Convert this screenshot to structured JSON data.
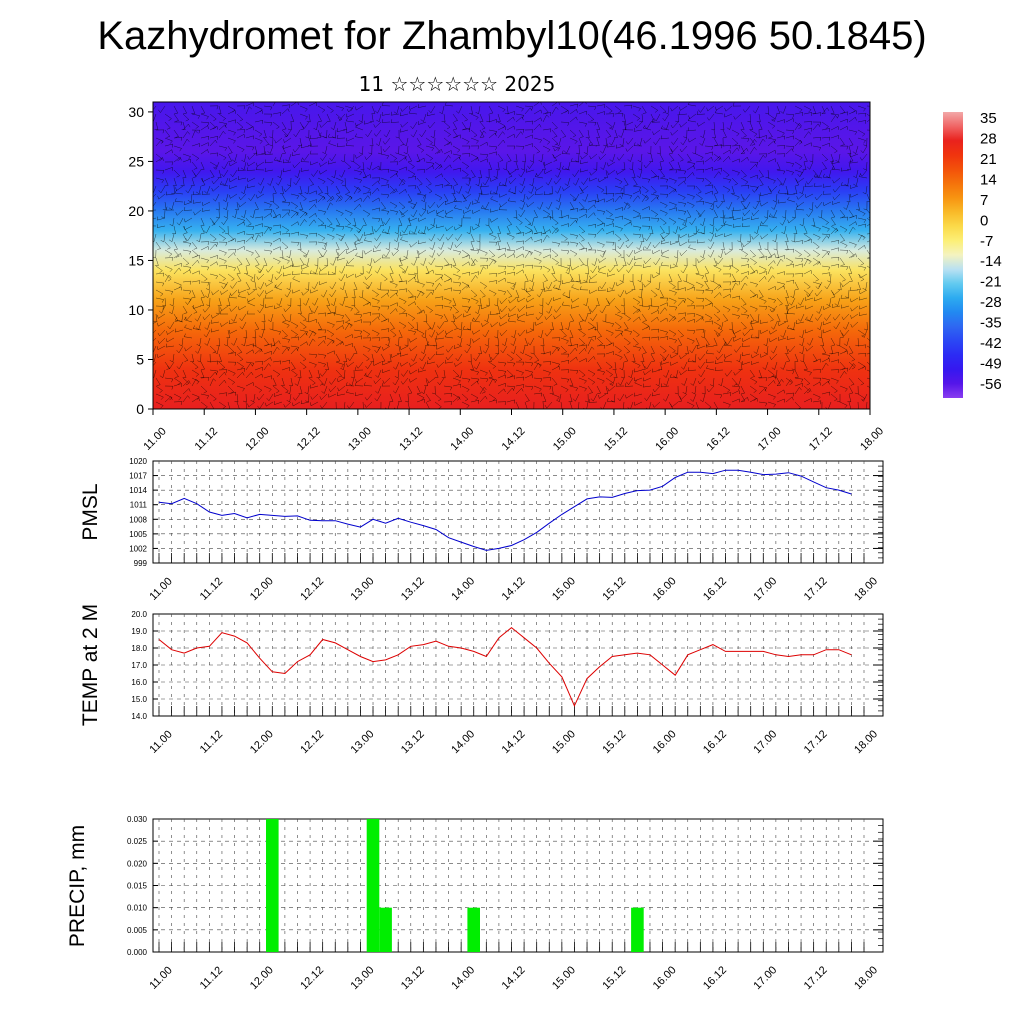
{
  "title": "Kazhydromet for Zhambyl10(46.1996 50.1845)",
  "subtitle": "11 ☆☆☆☆☆☆ 2025",
  "colors": {
    "pressure_line": "#0000cc",
    "temp_line": "#dd0000",
    "precip_bar": "#00ee00",
    "grid": "#444444"
  },
  "chart_data": [
    {
      "type": "heatmap",
      "name": "cross-section",
      "x_ticks": [
        "11.00",
        "11.12",
        "12.00",
        "12.12",
        "13.00",
        "13.12",
        "14.00",
        "14.12",
        "15.00",
        "15.12",
        "16.00",
        "16.12",
        "17.00",
        "17.12",
        "18.00"
      ],
      "y_ticks": [
        0,
        5,
        10,
        15,
        20,
        25,
        30
      ],
      "ylim": [
        0,
        31
      ],
      "overlay": "wind barbs",
      "colorbar_labels": [
        "35",
        "28",
        "21",
        "14",
        "7",
        "0",
        "-7",
        "-14",
        "-21",
        "-28",
        "-35",
        "-42",
        "-49",
        "-56"
      ],
      "levels": [
        {
          "y": 0,
          "value": 28
        },
        {
          "y": 4,
          "value": 23
        },
        {
          "y": 8,
          "value": 14
        },
        {
          "y": 11,
          "value": 6
        },
        {
          "y": 14,
          "value": -4
        },
        {
          "y": 16,
          "value": -14
        },
        {
          "y": 18,
          "value": -25
        },
        {
          "y": 20,
          "value": -33
        },
        {
          "y": 22,
          "value": -42
        },
        {
          "y": 24,
          "value": -52
        },
        {
          "y": 26,
          "value": -56
        },
        {
          "y": 28,
          "value": -55
        },
        {
          "y": 31,
          "value": -53
        }
      ]
    },
    {
      "type": "line",
      "ylabel": "PMSL",
      "x_ticks": [
        "11.00",
        "11.12",
        "12.00",
        "12.12",
        "13.00",
        "13.12",
        "14.00",
        "14.12",
        "15.00",
        "15.12",
        "16.00",
        "16.12",
        "17.00",
        "17.12",
        "18.00"
      ],
      "y_ticks": [
        "1020",
        "1017",
        "1014",
        "1011",
        "1008",
        "1005",
        "1002",
        "999"
      ],
      "ylim": [
        999,
        1020
      ],
      "x": [
        0,
        3,
        6,
        9,
        12,
        15,
        18,
        21,
        24,
        27,
        30,
        33,
        36,
        39,
        42,
        45,
        48,
        51,
        54,
        57,
        60,
        63,
        66,
        69,
        72,
        75,
        78,
        81,
        84,
        87,
        90,
        93,
        96,
        99,
        102,
        105,
        108,
        111,
        114,
        117,
        120,
        123,
        126,
        129,
        132,
        135,
        138,
        141,
        144,
        147,
        150,
        153,
        156,
        159,
        162,
        165
      ],
      "series": [
        {
          "values": [
            1011.5,
            1011.2,
            1012.3,
            1011.2,
            1009.5,
            1008.8,
            1009.2,
            1008.3,
            1009.0,
            1008.8,
            1008.6,
            1008.7,
            1007.8,
            1007.7,
            1007.7,
            1007.0,
            1006.4,
            1008.0,
            1007.2,
            1008.2,
            1007.4,
            1006.7,
            1005.9,
            1004.2,
            1003.3,
            1002.4,
            1001.6,
            1002.0,
            1002.6,
            1003.8,
            1005.3,
            1007.2,
            1009.0,
            1010.6,
            1012.2,
            1012.6,
            1012.5,
            1013.3,
            1013.9,
            1014.0,
            1014.8,
            1016.6,
            1017.7,
            1017.7,
            1017.4,
            1018.1,
            1018.1,
            1017.7,
            1017.2,
            1017.3,
            1017.6,
            1016.9,
            1015.7,
            1014.5,
            1014.0,
            1013.2
          ]
        }
      ]
    },
    {
      "type": "line",
      "ylabel": "TEMP at 2 M",
      "x_ticks": [
        "11.00",
        "11.12",
        "12.00",
        "12.12",
        "13.00",
        "13.12",
        "14.00",
        "14.12",
        "15.00",
        "15.12",
        "16.00",
        "16.12",
        "17.00",
        "17.12",
        "18.00"
      ],
      "y_ticks": [
        "20.0",
        "19.0",
        "18.0",
        "17.0",
        "16.0",
        "15.0",
        "14.0"
      ],
      "ylim": [
        14,
        20
      ],
      "x": [
        0,
        3,
        6,
        9,
        12,
        15,
        18,
        21,
        24,
        27,
        30,
        33,
        36,
        39,
        42,
        45,
        48,
        51,
        54,
        57,
        60,
        63,
        66,
        69,
        72,
        75,
        78,
        81,
        84,
        87,
        90,
        93,
        96,
        99,
        102,
        105,
        108,
        111,
        114,
        117,
        120,
        123,
        126,
        129,
        132,
        135,
        138,
        141,
        144,
        147,
        150,
        153,
        156,
        159,
        162,
        165
      ],
      "series": [
        {
          "values": [
            18.5,
            17.9,
            17.7,
            18.0,
            18.1,
            18.9,
            18.7,
            18.3,
            17.4,
            16.6,
            16.5,
            17.2,
            17.6,
            18.5,
            18.3,
            17.9,
            17.5,
            17.2,
            17.3,
            17.6,
            18.1,
            18.2,
            18.4,
            18.1,
            18.0,
            17.8,
            17.5,
            18.6,
            19.2,
            18.6,
            18.0,
            17.1,
            16.3,
            14.6,
            16.2,
            16.9,
            17.5,
            17.6,
            17.7,
            17.6,
            17.0,
            16.4,
            17.6,
            17.9,
            18.2,
            17.8,
            17.8,
            17.8,
            17.8,
            17.6,
            17.5,
            17.6,
            17.6,
            17.9,
            17.9,
            17.6
          ]
        }
      ]
    },
    {
      "type": "bar",
      "ylabel": "PRECIP, mm",
      "x_ticks": [
        "11.00",
        "11.12",
        "12.00",
        "12.12",
        "13.00",
        "13.12",
        "14.00",
        "14.12",
        "15.00",
        "15.12",
        "16.00",
        "16.12",
        "17.00",
        "17.12",
        "18.00"
      ],
      "y_ticks": [
        "0.030",
        "0.025",
        "0.020",
        "0.015",
        "0.010",
        "0.005",
        "0.000"
      ],
      "ylim": [
        0,
        0.03
      ],
      "x": [
        27,
        51,
        54,
        75,
        114
      ],
      "values": [
        0.03,
        0.03,
        0.01,
        0.01,
        0.01
      ],
      "bar_width_hours": 3
    }
  ]
}
